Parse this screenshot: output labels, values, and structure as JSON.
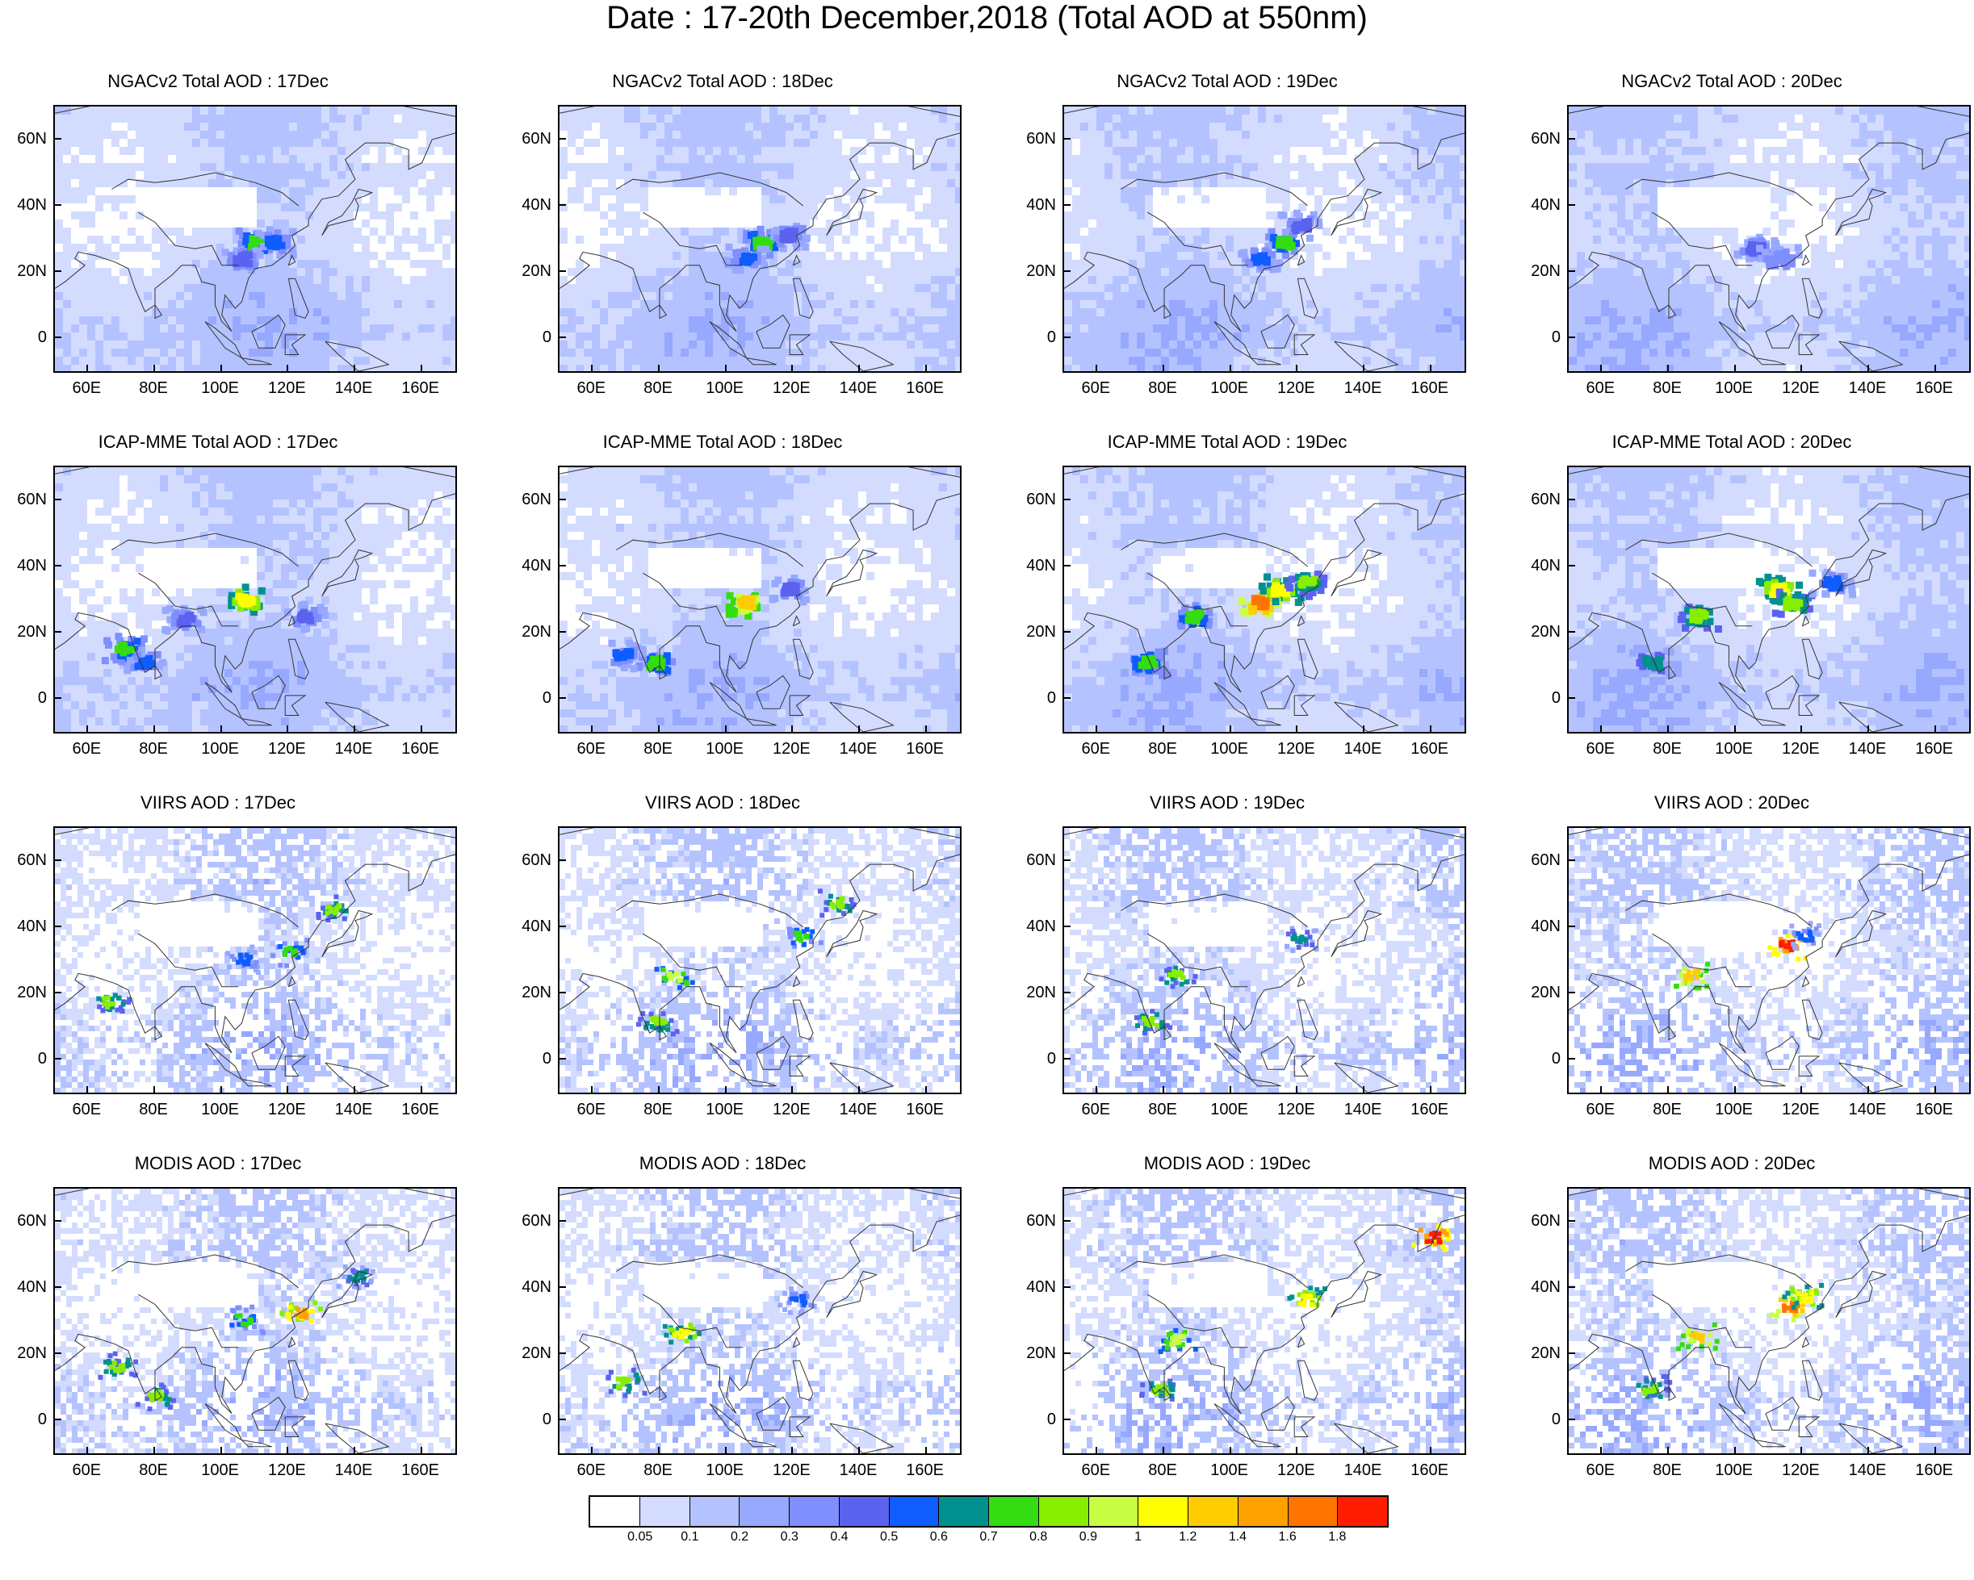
{
  "title": "Date : 17-20th December,2018 (Total AOD at 550nm)",
  "axes": {
    "lat_ticks": [
      "60N",
      "40N",
      "20N",
      "0"
    ],
    "lon_ticks": [
      "60E",
      "80E",
      "100E",
      "120E",
      "140E",
      "160E"
    ],
    "lon_range": [
      50,
      170
    ],
    "lat_range": [
      -10,
      70
    ]
  },
  "colorbar": {
    "colors": [
      "#ffffff",
      "#d3dcff",
      "#b4c3ff",
      "#97a8ff",
      "#7f8fff",
      "#5c62f0",
      "#0f5cff",
      "#00918e",
      "#33dd11",
      "#88ee00",
      "#c8ff44",
      "#ffff00",
      "#ffcc00",
      "#ffa200",
      "#ff7400",
      "#ff1d00"
    ],
    "labels": [
      "0.05",
      "0.1",
      "0.2",
      "0.3",
      "0.4",
      "0.5",
      "0.6",
      "0.7",
      "0.8",
      "0.9",
      "1",
      "1.2",
      "1.4",
      "1.6",
      "1.8"
    ]
  },
  "panels": [
    {
      "title": "NGACv2 Total AOD : 17Dec",
      "product": "NGACv2",
      "day": "17Dec"
    },
    {
      "title": "NGACv2 Total AOD : 18Dec",
      "product": "NGACv2",
      "day": "18Dec"
    },
    {
      "title": "NGACv2 Total AOD : 19Dec",
      "product": "NGACv2",
      "day": "19Dec"
    },
    {
      "title": "NGACv2 Total AOD : 20Dec",
      "product": "NGACv2",
      "day": "20Dec"
    },
    {
      "title": "ICAP-MME Total AOD : 17Dec",
      "product": "ICAP-MME",
      "day": "17Dec"
    },
    {
      "title": "ICAP-MME Total AOD : 18Dec",
      "product": "ICAP-MME",
      "day": "18Dec"
    },
    {
      "title": "ICAP-MME Total AOD : 19Dec",
      "product": "ICAP-MME",
      "day": "19Dec"
    },
    {
      "title": "ICAP-MME Total AOD : 20Dec",
      "product": "ICAP-MME",
      "day": "20Dec"
    },
    {
      "title": "VIIRS AOD : 17Dec",
      "product": "VIIRS",
      "day": "17Dec"
    },
    {
      "title": "VIIRS AOD : 18Dec",
      "product": "VIIRS",
      "day": "18Dec"
    },
    {
      "title": "VIIRS AOD : 19Dec",
      "product": "VIIRS",
      "day": "19Dec"
    },
    {
      "title": "VIIRS AOD : 20Dec",
      "product": "VIIRS",
      "day": "20Dec"
    },
    {
      "title": "MODIS AOD : 17Dec",
      "product": "MODIS",
      "day": "17Dec"
    },
    {
      "title": "MODIS AOD : 18Dec",
      "product": "MODIS",
      "day": "18Dec"
    },
    {
      "title": "MODIS AOD : 19Dec",
      "product": "MODIS",
      "day": "19Dec"
    },
    {
      "title": "MODIS AOD : 20Dec",
      "product": "MODIS",
      "day": "20Dec"
    }
  ],
  "hotspots": {
    "NGACv2": [
      [
        {
          "lon": 110,
          "lat": 30,
          "level": 8
        },
        {
          "lon": 115,
          "lat": 30,
          "level": 6
        },
        {
          "lon": 105,
          "lat": 25,
          "level": 5
        }
      ],
      [
        {
          "lon": 110,
          "lat": 30,
          "level": 8
        },
        {
          "lon": 105,
          "lat": 25,
          "level": 6
        },
        {
          "lon": 118,
          "lat": 32,
          "level": 5
        }
      ],
      [
        {
          "lon": 115,
          "lat": 30,
          "level": 8
        },
        {
          "lon": 108,
          "lat": 25,
          "level": 6
        },
        {
          "lon": 120,
          "lat": 35,
          "level": 5
        }
      ],
      [
        {
          "lon": 105,
          "lat": 28,
          "level": 5
        },
        {
          "lon": 112,
          "lat": 25,
          "level": 4
        }
      ]
    ],
    "ICAP-MME": [
      [
        {
          "lon": 70,
          "lat": 16,
          "level": 8
        },
        {
          "lon": 76,
          "lat": 12,
          "level": 6
        },
        {
          "lon": 106,
          "lat": 31,
          "level": 11
        },
        {
          "lon": 124,
          "lat": 26,
          "level": 5
        },
        {
          "lon": 88,
          "lat": 25,
          "level": 5
        }
      ],
      [
        {
          "lon": 78,
          "lat": 12,
          "level": 8
        },
        {
          "lon": 105,
          "lat": 30,
          "level": 12
        },
        {
          "lon": 68,
          "lat": 14,
          "level": 6
        },
        {
          "lon": 118,
          "lat": 34,
          "level": 5
        }
      ],
      [
        {
          "lon": 108,
          "lat": 30,
          "level": 14
        },
        {
          "lon": 114,
          "lat": 34,
          "level": 11
        },
        {
          "lon": 122,
          "lat": 36,
          "level": 9
        },
        {
          "lon": 88,
          "lat": 26,
          "level": 8
        },
        {
          "lon": 74,
          "lat": 12,
          "level": 8
        }
      ],
      [
        {
          "lon": 112,
          "lat": 34,
          "level": 11
        },
        {
          "lon": 116,
          "lat": 30,
          "level": 9
        },
        {
          "lon": 88,
          "lat": 26,
          "level": 9
        },
        {
          "lon": 74,
          "lat": 12,
          "level": 7
        },
        {
          "lon": 128,
          "lat": 36,
          "level": 6
        }
      ]
    ],
    "VIIRS": [
      [
        {
          "lon": 66,
          "lat": 18,
          "level": 9
        },
        {
          "lon": 120,
          "lat": 33,
          "level": 8
        },
        {
          "lon": 133,
          "lat": 46,
          "level": 9
        },
        {
          "lon": 106,
          "lat": 31,
          "level": 6
        }
      ],
      [
        {
          "lon": 84,
          "lat": 26,
          "level": 10
        },
        {
          "lon": 79,
          "lat": 12,
          "level": 9
        },
        {
          "lon": 122,
          "lat": 38,
          "level": 8
        },
        {
          "lon": 133,
          "lat": 48,
          "level": 9
        }
      ],
      [
        {
          "lon": 83,
          "lat": 26,
          "level": 9
        },
        {
          "lon": 75,
          "lat": 12,
          "level": 9
        },
        {
          "lon": 120,
          "lat": 37,
          "level": 7
        }
      ],
      [
        {
          "lon": 115,
          "lat": 35,
          "level": 15
        },
        {
          "lon": 86,
          "lat": 26,
          "level": 12
        },
        {
          "lon": 120,
          "lat": 38,
          "level": 6
        }
      ]
    ],
    "MODIS": [
      [
        {
          "lon": 68,
          "lat": 17,
          "level": 9
        },
        {
          "lon": 80,
          "lat": 8,
          "level": 9
        },
        {
          "lon": 106,
          "lat": 31,
          "level": 8
        },
        {
          "lon": 123,
          "lat": 33,
          "level": 13
        },
        {
          "lon": 140,
          "lat": 44,
          "level": 7
        }
      ],
      [
        {
          "lon": 86,
          "lat": 27,
          "level": 11
        },
        {
          "lon": 69,
          "lat": 12,
          "level": 9
        },
        {
          "lon": 121,
          "lat": 37,
          "level": 6
        }
      ],
      [
        {
          "lon": 83,
          "lat": 25,
          "level": 10
        },
        {
          "lon": 122,
          "lat": 37,
          "level": 11
        },
        {
          "lon": 160,
          "lat": 56,
          "level": 15
        },
        {
          "lon": 78,
          "lat": 10,
          "level": 9
        }
      ],
      [
        {
          "lon": 116,
          "lat": 35,
          "level": 14
        },
        {
          "lon": 88,
          "lat": 26,
          "level": 12
        },
        {
          "lon": 74,
          "lat": 10,
          "level": 9
        },
        {
          "lon": 120,
          "lat": 38,
          "level": 11
        }
      ]
    ]
  }
}
